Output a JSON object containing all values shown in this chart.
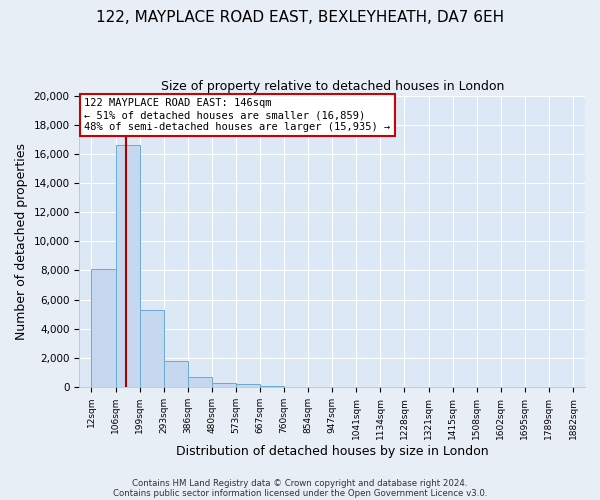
{
  "title": "122, MAYPLACE ROAD EAST, BEXLEYHEATH, DA7 6EH",
  "subtitle": "Size of property relative to detached houses in London",
  "xlabel": "Distribution of detached houses by size in London",
  "ylabel": "Number of detached properties",
  "bar_values": [
    8100,
    16600,
    5300,
    1800,
    700,
    300,
    200,
    100,
    0,
    0,
    0,
    0,
    0,
    0,
    0,
    0,
    0,
    0,
    0,
    0
  ],
  "categories": [
    "12sqm",
    "106sqm",
    "199sqm",
    "293sqm",
    "386sqm",
    "480sqm",
    "573sqm",
    "667sqm",
    "760sqm",
    "854sqm",
    "947sqm",
    "1041sqm",
    "1134sqm",
    "1228sqm",
    "1321sqm",
    "1415sqm",
    "1508sqm",
    "1602sqm",
    "1695sqm",
    "1789sqm",
    "1882sqm"
  ],
  "bar_color": "#c5d8f0",
  "bar_edge_color": "#6aaad4",
  "figure_bg_color": "#e8eef5",
  "axes_bg_color": "#dce8f5",
  "grid_color": "#ffffff",
  "vline_color": "#aa0000",
  "annotation_text_line1": "122 MAYPLACE ROAD EAST: 146sqm",
  "annotation_text_line2": "← 51% of detached houses are smaller (16,859)",
  "annotation_text_line3": "48% of semi-detached houses are larger (15,935) →",
  "annotation_box_color": "#ffffff",
  "annotation_box_edge": "#cc0000",
  "ylim": [
    0,
    20000
  ],
  "yticks": [
    0,
    2000,
    4000,
    6000,
    8000,
    10000,
    12000,
    14000,
    16000,
    18000,
    20000
  ],
  "footer_line1": "Contains HM Land Registry data © Crown copyright and database right 2024.",
  "footer_line2": "Contains public sector information licensed under the Open Government Licence v3.0.",
  "figsize": [
    6.0,
    5.0
  ],
  "dpi": 100
}
